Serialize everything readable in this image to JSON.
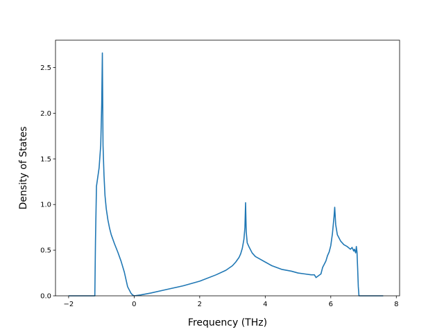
{
  "chart_data": {
    "type": "line",
    "title": "",
    "xlabel": "Frequency (THz)",
    "ylabel": "Density of States",
    "xlim": [
      -2.4,
      8.1
    ],
    "ylim": [
      0.0,
      2.8
    ],
    "xticks": [
      -2,
      0,
      2,
      4,
      6,
      8
    ],
    "xtick_labels": [
      "−2",
      "0",
      "2",
      "4",
      "6",
      "8"
    ],
    "yticks": [
      0.0,
      0.5,
      1.0,
      1.5,
      2.0,
      2.5
    ],
    "ytick_labels": [
      "0.0",
      "0.5",
      "1.0",
      "1.5",
      "2.0",
      "2.5"
    ],
    "grid": false,
    "legend": "none",
    "line_color": "#1f77b4",
    "series": [
      {
        "x": [
          -2.0,
          -1.2,
          -1.18,
          -1.15,
          -1.07,
          -1.02,
          -0.99,
          -0.97,
          -0.95,
          -0.92,
          -0.89,
          -0.85,
          -0.8,
          -0.75,
          -0.7,
          -0.6,
          -0.5,
          -0.4,
          -0.3,
          -0.2,
          -0.1,
          -0.05,
          0.0,
          0.2,
          0.5,
          1.0,
          1.5,
          2.0,
          2.5,
          2.8,
          3.0,
          3.1,
          3.2,
          3.25,
          3.3,
          3.35,
          3.38,
          3.4,
          3.42,
          3.45,
          3.5,
          3.6,
          3.7,
          3.8,
          4.0,
          4.2,
          4.5,
          4.8,
          5.0,
          5.2,
          5.4,
          5.5,
          5.55,
          5.7,
          5.75,
          5.85,
          5.9,
          5.95,
          6.0,
          6.05,
          6.1,
          6.12,
          6.15,
          6.2,
          6.3,
          6.4,
          6.5,
          6.6,
          6.65,
          6.7,
          6.72,
          6.76,
          6.78,
          6.8,
          6.82,
          6.84,
          6.86,
          7.0,
          7.6
        ],
        "y": [
          0.0,
          0.0,
          0.6,
          1.2,
          1.4,
          1.65,
          2.1,
          2.66,
          1.65,
          1.32,
          1.1,
          0.95,
          0.83,
          0.74,
          0.67,
          0.57,
          0.48,
          0.38,
          0.26,
          0.1,
          0.03,
          0.01,
          0.0,
          0.01,
          0.03,
          0.07,
          0.11,
          0.16,
          0.23,
          0.28,
          0.33,
          0.37,
          0.42,
          0.46,
          0.52,
          0.62,
          0.75,
          1.02,
          0.7,
          0.58,
          0.54,
          0.47,
          0.43,
          0.41,
          0.37,
          0.33,
          0.29,
          0.27,
          0.25,
          0.24,
          0.23,
          0.23,
          0.2,
          0.24,
          0.31,
          0.38,
          0.44,
          0.48,
          0.55,
          0.68,
          0.87,
          0.97,
          0.78,
          0.67,
          0.6,
          0.56,
          0.54,
          0.51,
          0.53,
          0.49,
          0.51,
          0.47,
          0.54,
          0.48,
          0.3,
          0.1,
          0.0,
          0.0,
          0.0
        ]
      }
    ]
  }
}
